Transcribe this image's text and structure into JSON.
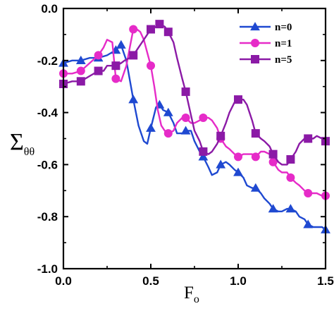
{
  "chart_data": {
    "type": "line",
    "xlabel": {
      "base": "F",
      "sub": "o"
    },
    "ylabel": {
      "base": "Σ",
      "sub": "θθ"
    },
    "xlim": [
      0,
      1.5
    ],
    "ylim": [
      -1.0,
      0.0
    ],
    "xticks": [
      "0.0",
      "0.5",
      "1.0",
      "1.5"
    ],
    "yticks": [
      "0.0",
      "-0.2",
      "-0.4",
      "-0.6",
      "-0.8",
      "-1.0"
    ],
    "grid": false,
    "legend_position": "top-right",
    "series": [
      {
        "name": "n=0",
        "color": "#1f49d1",
        "marker": "triangle",
        "line_points": [
          [
            0.0,
            -0.21
          ],
          [
            0.05,
            -0.2
          ],
          [
            0.1,
            -0.2
          ],
          [
            0.15,
            -0.19
          ],
          [
            0.2,
            -0.19
          ],
          [
            0.25,
            -0.18
          ],
          [
            0.3,
            -0.16
          ],
          [
            0.33,
            -0.14
          ],
          [
            0.36,
            -0.2
          ],
          [
            0.4,
            -0.35
          ],
          [
            0.43,
            -0.45
          ],
          [
            0.46,
            -0.51
          ],
          [
            0.48,
            -0.52
          ],
          [
            0.5,
            -0.46
          ],
          [
            0.53,
            -0.38
          ],
          [
            0.55,
            -0.37
          ],
          [
            0.57,
            -0.39
          ],
          [
            0.6,
            -0.4
          ],
          [
            0.63,
            -0.44
          ],
          [
            0.65,
            -0.48
          ],
          [
            0.68,
            -0.48
          ],
          [
            0.7,
            -0.47
          ],
          [
            0.73,
            -0.47
          ],
          [
            0.75,
            -0.51
          ],
          [
            0.78,
            -0.55
          ],
          [
            0.8,
            -0.57
          ],
          [
            0.83,
            -0.61
          ],
          [
            0.85,
            -0.64
          ],
          [
            0.88,
            -0.63
          ],
          [
            0.9,
            -0.6
          ],
          [
            0.93,
            -0.59
          ],
          [
            0.95,
            -0.6
          ],
          [
            0.98,
            -0.62
          ],
          [
            1.0,
            -0.63
          ],
          [
            1.03,
            -0.65
          ],
          [
            1.05,
            -0.68
          ],
          [
            1.08,
            -0.69
          ],
          [
            1.1,
            -0.69
          ],
          [
            1.13,
            -0.71
          ],
          [
            1.15,
            -0.73
          ],
          [
            1.18,
            -0.75
          ],
          [
            1.2,
            -0.77
          ],
          [
            1.23,
            -0.78
          ],
          [
            1.25,
            -0.78
          ],
          [
            1.28,
            -0.77
          ],
          [
            1.3,
            -0.77
          ],
          [
            1.33,
            -0.78
          ],
          [
            1.35,
            -0.8
          ],
          [
            1.38,
            -0.81
          ],
          [
            1.4,
            -0.83
          ],
          [
            1.43,
            -0.84
          ],
          [
            1.45,
            -0.84
          ],
          [
            1.48,
            -0.84
          ],
          [
            1.5,
            -0.85
          ]
        ],
        "marker_points": [
          [
            0.0,
            -0.21
          ],
          [
            0.1,
            -0.2
          ],
          [
            0.2,
            -0.19
          ],
          [
            0.3,
            -0.16
          ],
          [
            0.33,
            -0.14
          ],
          [
            0.4,
            -0.35
          ],
          [
            0.5,
            -0.46
          ],
          [
            0.55,
            -0.37
          ],
          [
            0.6,
            -0.4
          ],
          [
            0.7,
            -0.47
          ],
          [
            0.8,
            -0.57
          ],
          [
            0.9,
            -0.6
          ],
          [
            1.0,
            -0.63
          ],
          [
            1.1,
            -0.69
          ],
          [
            1.2,
            -0.77
          ],
          [
            1.3,
            -0.77
          ],
          [
            1.4,
            -0.83
          ],
          [
            1.5,
            -0.85
          ]
        ]
      },
      {
        "name": "n=1",
        "color": "#e62bc8",
        "marker": "circle",
        "line_points": [
          [
            0.0,
            -0.25
          ],
          [
            0.05,
            -0.25
          ],
          [
            0.1,
            -0.24
          ],
          [
            0.15,
            -0.21
          ],
          [
            0.2,
            -0.18
          ],
          [
            0.23,
            -0.15
          ],
          [
            0.25,
            -0.12
          ],
          [
            0.28,
            -0.13
          ],
          [
            0.3,
            -0.27
          ],
          [
            0.33,
            -0.28
          ],
          [
            0.36,
            -0.22
          ],
          [
            0.38,
            -0.15
          ],
          [
            0.4,
            -0.08
          ],
          [
            0.42,
            -0.08
          ],
          [
            0.44,
            -0.09
          ],
          [
            0.46,
            -0.12
          ],
          [
            0.48,
            -0.17
          ],
          [
            0.5,
            -0.22
          ],
          [
            0.52,
            -0.3
          ],
          [
            0.54,
            -0.39
          ],
          [
            0.56,
            -0.45
          ],
          [
            0.58,
            -0.47
          ],
          [
            0.6,
            -0.48
          ],
          [
            0.63,
            -0.47
          ],
          [
            0.65,
            -0.44
          ],
          [
            0.68,
            -0.42
          ],
          [
            0.7,
            -0.42
          ],
          [
            0.73,
            -0.44
          ],
          [
            0.75,
            -0.44
          ],
          [
            0.78,
            -0.43
          ],
          [
            0.8,
            -0.42
          ],
          [
            0.83,
            -0.42
          ],
          [
            0.85,
            -0.43
          ],
          [
            0.88,
            -0.46
          ],
          [
            0.9,
            -0.5
          ],
          [
            0.93,
            -0.53
          ],
          [
            0.95,
            -0.54
          ],
          [
            0.98,
            -0.56
          ],
          [
            1.0,
            -0.57
          ],
          [
            1.03,
            -0.56
          ],
          [
            1.05,
            -0.56
          ],
          [
            1.08,
            -0.56
          ],
          [
            1.1,
            -0.57
          ],
          [
            1.13,
            -0.55
          ],
          [
            1.15,
            -0.55
          ],
          [
            1.18,
            -0.56
          ],
          [
            1.2,
            -0.59
          ],
          [
            1.23,
            -0.62
          ],
          [
            1.25,
            -0.63
          ],
          [
            1.28,
            -0.63
          ],
          [
            1.3,
            -0.65
          ],
          [
            1.33,
            -0.67
          ],
          [
            1.35,
            -0.68
          ],
          [
            1.38,
            -0.7
          ],
          [
            1.4,
            -0.71
          ],
          [
            1.43,
            -0.71
          ],
          [
            1.45,
            -0.71
          ],
          [
            1.48,
            -0.72
          ],
          [
            1.5,
            -0.72
          ]
        ],
        "marker_points": [
          [
            0.0,
            -0.25
          ],
          [
            0.1,
            -0.24
          ],
          [
            0.2,
            -0.18
          ],
          [
            0.3,
            -0.27
          ],
          [
            0.4,
            -0.08
          ],
          [
            0.5,
            -0.22
          ],
          [
            0.6,
            -0.48
          ],
          [
            0.7,
            -0.42
          ],
          [
            0.8,
            -0.42
          ],
          [
            0.9,
            -0.5
          ],
          [
            1.0,
            -0.57
          ],
          [
            1.1,
            -0.57
          ],
          [
            1.2,
            -0.59
          ],
          [
            1.3,
            -0.65
          ],
          [
            1.4,
            -0.71
          ],
          [
            1.5,
            -0.72
          ]
        ]
      },
      {
        "name": "n=5",
        "color": "#8b1aa6",
        "marker": "square",
        "line_points": [
          [
            0.0,
            -0.29
          ],
          [
            0.05,
            -0.28
          ],
          [
            0.1,
            -0.28
          ],
          [
            0.15,
            -0.26
          ],
          [
            0.2,
            -0.24
          ],
          [
            0.23,
            -0.24
          ],
          [
            0.25,
            -0.22
          ],
          [
            0.28,
            -0.22
          ],
          [
            0.3,
            -0.22
          ],
          [
            0.33,
            -0.21
          ],
          [
            0.35,
            -0.2
          ],
          [
            0.38,
            -0.19
          ],
          [
            0.4,
            -0.18
          ],
          [
            0.43,
            -0.15
          ],
          [
            0.45,
            -0.13
          ],
          [
            0.48,
            -0.1
          ],
          [
            0.5,
            -0.08
          ],
          [
            0.53,
            -0.07
          ],
          [
            0.55,
            -0.06
          ],
          [
            0.58,
            -0.07
          ],
          [
            0.6,
            -0.09
          ],
          [
            0.63,
            -0.13
          ],
          [
            0.65,
            -0.19
          ],
          [
            0.68,
            -0.27
          ],
          [
            0.7,
            -0.32
          ],
          [
            0.73,
            -0.41
          ],
          [
            0.75,
            -0.47
          ],
          [
            0.78,
            -0.51
          ],
          [
            0.8,
            -0.55
          ],
          [
            0.83,
            -0.56
          ],
          [
            0.85,
            -0.55
          ],
          [
            0.88,
            -0.52
          ],
          [
            0.9,
            -0.49
          ],
          [
            0.93,
            -0.44
          ],
          [
            0.95,
            -0.4
          ],
          [
            0.98,
            -0.36
          ],
          [
            1.0,
            -0.35
          ],
          [
            1.03,
            -0.35
          ],
          [
            1.05,
            -0.37
          ],
          [
            1.08,
            -0.43
          ],
          [
            1.1,
            -0.48
          ],
          [
            1.13,
            -0.5
          ],
          [
            1.15,
            -0.51
          ],
          [
            1.18,
            -0.53
          ],
          [
            1.2,
            -0.56
          ],
          [
            1.23,
            -0.59
          ],
          [
            1.25,
            -0.6
          ],
          [
            1.28,
            -0.6
          ],
          [
            1.3,
            -0.58
          ],
          [
            1.33,
            -0.55
          ],
          [
            1.35,
            -0.52
          ],
          [
            1.38,
            -0.5
          ],
          [
            1.4,
            -0.5
          ],
          [
            1.43,
            -0.5
          ],
          [
            1.45,
            -0.49
          ],
          [
            1.48,
            -0.5
          ],
          [
            1.5,
            -0.51
          ]
        ],
        "marker_points": [
          [
            0.0,
            -0.29
          ],
          [
            0.1,
            -0.28
          ],
          [
            0.2,
            -0.24
          ],
          [
            0.3,
            -0.22
          ],
          [
            0.4,
            -0.18
          ],
          [
            0.5,
            -0.08
          ],
          [
            0.55,
            -0.06
          ],
          [
            0.6,
            -0.09
          ],
          [
            0.7,
            -0.32
          ],
          [
            0.8,
            -0.55
          ],
          [
            0.9,
            -0.49
          ],
          [
            1.0,
            -0.35
          ],
          [
            1.1,
            -0.48
          ],
          [
            1.2,
            -0.56
          ],
          [
            1.3,
            -0.58
          ],
          [
            1.4,
            -0.5
          ],
          [
            1.5,
            -0.51
          ]
        ]
      }
    ]
  }
}
